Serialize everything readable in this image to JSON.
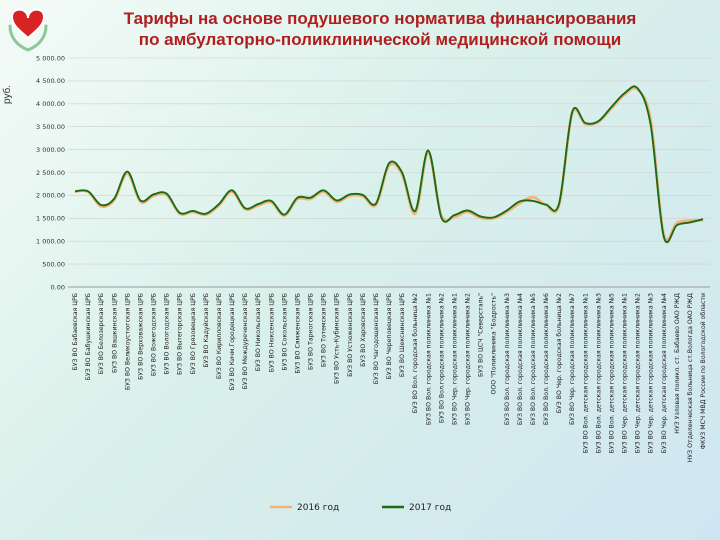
{
  "title": {
    "line1": "Тарифы на основе подушевого норматива финансирования",
    "line2": "по амбулаторно-поликлинической медицинской помощи"
  },
  "colors": {
    "s2016": "#f2b27a",
    "s2017": "#1e6b14",
    "title": "#b01e1e",
    "logo": "#d92323"
  },
  "chart_data": {
    "type": "line",
    "ylabel": "руб.",
    "ylim": [
      0,
      5000
    ],
    "yticks": [
      "0.00",
      "500.00",
      "1 000.00",
      "1 500.00",
      "2 000.00",
      "2 500.00",
      "3 000.00",
      "3 500.00",
      "4 000.00",
      "4 500.00",
      "5 000.00"
    ],
    "grid": true,
    "legend": "bottom",
    "categories": [
      "БУЗ ВО Бабаевская ЦРБ",
      "БУЗ ВО Бабушкинская ЦРБ",
      "БУЗ ВО Белозерская ЦРБ",
      "БУЗ ВО Вашкинская ЦРБ",
      "БУЗ ВО Великоустюгская ЦРБ",
      "БУЗ ВО Верховажская ЦРБ",
      "БУЗ ВО Вожегодская ЦРБ",
      "БУЗ ВО Вологодская ЦРБ",
      "БУЗ ВО Вытегорская ЦРБ",
      "БУЗ ВО Грязовецкая ЦРБ",
      "БУЗ ВО Кадуйская ЦРБ",
      "БУЗ ВО Кирилловская ЦРБ",
      "БУЗ ВО Кичм.Городецкая ЦРБ",
      "БУЗ ВО Междуреченская ЦРБ",
      "БУЗ ВО Никольская ЦРБ",
      "БУЗ ВО Нюксенская ЦРБ",
      "БУЗ ВО Сокольская ЦРБ",
      "БУЗ ВО Сямженская ЦРБ",
      "БУЗ ВО Тарногская ЦРБ",
      "БУЗ ВО Тотемская ЦРБ",
      "БУЗ ВО Усть-Кубинская ЦРБ",
      "БУЗ ВО Устюженская ЦРБ",
      "БУЗ ВО Харовская ЦРБ",
      "БУЗ ВО Чагодощенская ЦРБ",
      "БУЗ ВО Череповецкая ЦРБ",
      "БУЗ ВО Шекснинская ЦРБ",
      "БУЗ ВО Вол. городская больница №2",
      "БУЗ ВО Вол. городская поликлиника №1",
      "БУЗ ВО Вол.городская поликлиника №2",
      "БУЗ ВО Чер. городская поликлиника №1",
      "БУЗ ВО Чер. городская поликлиника №2",
      "БУЗ ВО ЦСЧ \"Северсталь\"",
      "ООО \"Поликлиника \"Бодрость\"",
      "БУЗ ВО Вол. городская поликлиника №3",
      "БУЗ ВО Вол. городская поликлиника №4",
      "БУЗ ВО Вол. городская поликлиника №5",
      "БУЗ ВО Вол. городская поликлиника №6",
      "БУЗ ВО Чер. городская больница №2",
      "БУЗ ВО Чер. городская поликлиника №7",
      "БУЗ ВО Вол. детская городская поликлиника №1",
      "БУЗ ВО Вол. детская городская поликлиника №3",
      "БУЗ ВО Вол. детская городская поликлиника №5",
      "БУЗ ВО Чер. детская городская поликлиника №1",
      "БУЗ ВО Чер. детская городская поликлиника №2",
      "БУЗ ВО Чер. детская городская поликлиника №3",
      "БУЗ ВО Чер. детская городская поликлиника №4",
      "НУЗ Узловая поликл. ст. Бабаево ОАО РЖД",
      "НУЗ Отделенческая больница ст.Вологда ОАО РЖД",
      "ФКУЗ МСЧ МВД России по Вологодской области"
    ],
    "series": [
      {
        "name": "2016 год",
        "values": [
          2080,
          2080,
          1760,
          1900,
          2480,
          1860,
          1990,
          2010,
          1600,
          1640,
          1580,
          1780,
          2080,
          1700,
          1780,
          1850,
          1560,
          1920,
          1920,
          2080,
          1860,
          1990,
          1980,
          1790,
          2650,
          2460,
          1600,
          2920,
          1560,
          1530,
          1640,
          1510,
          1500,
          1640,
          1830,
          1960,
          1790,
          1790,
          3780,
          3560,
          3600,
          3900,
          4200,
          4310,
          3650,
          1150,
          1400,
          1450,
          1460
        ]
      },
      {
        "name": "2017 год",
        "values": [
          2090,
          2090,
          1790,
          1930,
          2520,
          1890,
          2020,
          2040,
          1620,
          1660,
          1600,
          1810,
          2110,
          1720,
          1810,
          1880,
          1580,
          1950,
          1950,
          2110,
          1890,
          2020,
          2010,
          1820,
          2700,
          2500,
          1660,
          2980,
          1520,
          1570,
          1670,
          1540,
          1520,
          1670,
          1870,
          1880,
          1800,
          1820,
          3820,
          3580,
          3620,
          3930,
          4230,
          4340,
          3540,
          1100,
          1350,
          1410,
          1480
        ]
      }
    ]
  }
}
